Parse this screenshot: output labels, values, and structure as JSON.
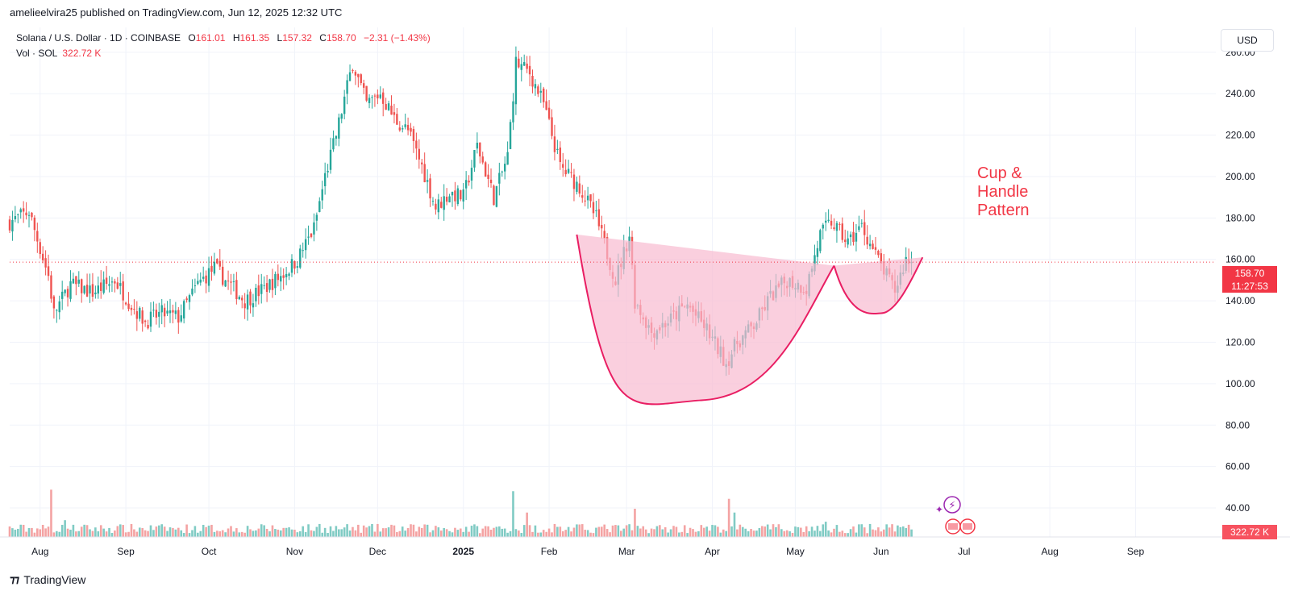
{
  "header": {
    "published": "amelieelvira25 published on TradingView.com, Jun 12, 2025 12:32 UTC"
  },
  "legend": {
    "symbol": "Solana / U.S. Dollar · 1D · COINBASE",
    "o_label": "O",
    "o_value": "161.01",
    "h_label": "H",
    "h_value": "161.35",
    "l_label": "L",
    "l_value": "157.32",
    "c_label": "C",
    "c_value": "158.70",
    "change": "−2.31 (−1.43%)",
    "vol_label": "Vol · SOL",
    "vol_value": "322.72 K"
  },
  "currency_button": "USD",
  "price_tag": {
    "price": "158.70",
    "countdown": "11:27:53"
  },
  "volume_tag": "322.72 K",
  "footer": {
    "brand": "TradingView"
  },
  "annotation": {
    "line1": "Cup &",
    "line2": "Handle",
    "line3": "Pattern"
  },
  "colors": {
    "up": "#26a69a",
    "down": "#ef5350",
    "vol_up": "#80cbc4",
    "vol_down": "#f4a3a3",
    "pattern_stroke": "#e91e63",
    "pattern_fill": "#f8bbd0",
    "annotation": "#f23645",
    "grid": "#f0f3fa"
  },
  "chart_data": {
    "type": "candlestick",
    "y_axis": {
      "ticks": [
        40,
        60,
        80,
        100,
        120,
        140,
        160,
        180,
        200,
        220,
        240,
        260
      ],
      "tick_labels": [
        "40.00",
        "60.00",
        "80.00",
        "100.00",
        "120.00",
        "140.00",
        "160.00",
        "180.00",
        "200.00",
        "220.00",
        "240.00",
        "260.00"
      ],
      "range": [
        26,
        272
      ]
    },
    "x_axis": {
      "labels": [
        "Aug",
        "Sep",
        "Oct",
        "Nov",
        "Dec",
        "2025",
        "Feb",
        "Mar",
        "Apr",
        "May",
        "Jun",
        "Jul",
        "Aug",
        "Sep"
      ],
      "label_dates": [
        "2024-08-01",
        "2024-09-01",
        "2024-10-01",
        "2024-11-01",
        "2024-12-01",
        "2025-01-01",
        "2025-02-01",
        "2025-03-01",
        "2025-04-01",
        "2025-05-01",
        "2025-06-01",
        "2025-07-01",
        "2025-08-01",
        "2025-09-01"
      ],
      "range": [
        "2024-07-21",
        "2025-09-30"
      ]
    },
    "last_price": 158.7,
    "price_series_approx": [
      [
        "2024-07-21",
        178
      ],
      [
        "2024-07-28",
        183
      ],
      [
        "2024-08-04",
        152
      ],
      [
        "2024-08-06",
        134
      ],
      [
        "2024-08-12",
        148
      ],
      [
        "2024-08-20",
        144
      ],
      [
        "2024-08-28",
        150
      ],
      [
        "2024-09-03",
        138
      ],
      [
        "2024-09-08",
        130
      ],
      [
        "2024-09-14",
        134
      ],
      [
        "2024-09-20",
        132
      ],
      [
        "2024-09-27",
        148
      ],
      [
        "2024-10-03",
        156
      ],
      [
        "2024-10-07",
        150
      ],
      [
        "2024-10-14",
        140
      ],
      [
        "2024-10-21",
        146
      ],
      [
        "2024-10-28",
        153
      ],
      [
        "2024-11-02",
        160
      ],
      [
        "2024-11-08",
        175
      ],
      [
        "2024-11-12",
        200
      ],
      [
        "2024-11-16",
        220
      ],
      [
        "2024-11-22",
        255
      ],
      [
        "2024-11-27",
        235
      ],
      [
        "2024-12-02",
        240
      ],
      [
        "2024-12-07",
        228
      ],
      [
        "2024-12-12",
        222
      ],
      [
        "2024-12-17",
        205
      ],
      [
        "2024-12-22",
        185
      ],
      [
        "2024-12-27",
        192
      ],
      [
        "2025-01-01",
        190
      ],
      [
        "2025-01-06",
        215
      ],
      [
        "2025-01-12",
        190
      ],
      [
        "2025-01-17",
        210
      ],
      [
        "2025-01-20",
        255
      ],
      [
        "2025-01-25",
        250
      ],
      [
        "2025-01-30",
        235
      ],
      [
        "2025-02-05",
        205
      ],
      [
        "2025-02-12",
        195
      ],
      [
        "2025-02-18",
        180
      ],
      [
        "2025-02-25",
        150
      ],
      [
        "2025-03-02",
        172
      ],
      [
        "2025-03-04",
        140
      ],
      [
        "2025-03-10",
        125
      ],
      [
        "2025-03-16",
        130
      ],
      [
        "2025-03-23",
        138
      ],
      [
        "2025-03-30",
        126
      ],
      [
        "2025-04-06",
        110
      ],
      [
        "2025-04-10",
        120
      ],
      [
        "2025-04-16",
        128
      ],
      [
        "2025-04-22",
        142
      ],
      [
        "2025-04-28",
        150
      ],
      [
        "2025-05-05",
        146
      ],
      [
        "2025-05-10",
        172
      ],
      [
        "2025-05-14",
        178
      ],
      [
        "2025-05-20",
        168
      ],
      [
        "2025-05-25",
        176
      ],
      [
        "2025-05-30",
        162
      ],
      [
        "2025-06-03",
        152
      ],
      [
        "2025-06-06",
        145
      ],
      [
        "2025-06-10",
        160
      ],
      [
        "2025-06-12",
        158.7
      ]
    ],
    "volume_series_approx": [
      [
        "2024-08-05",
        90
      ],
      [
        "2024-08-10",
        50
      ],
      [
        "2024-09-20",
        40
      ],
      [
        "2024-11-10",
        45
      ],
      [
        "2024-12-01",
        45
      ],
      [
        "2025-01-19",
        88
      ],
      [
        "2025-01-24",
        60
      ],
      [
        "2025-02-03",
        45
      ],
      [
        "2025-03-04",
        65
      ],
      [
        "2025-04-07",
        78
      ],
      [
        "2025-04-09",
        60
      ],
      [
        "2025-05-12",
        48
      ],
      [
        "2025-05-28",
        45
      ]
    ],
    "pattern": {
      "name": "Cup & Handle Pattern",
      "cup_left": [
        "2025-02-11",
        172
      ],
      "cup_bottom": [
        "2025-03-28",
        92
      ],
      "cup_right": [
        "2025-05-15",
        157
      ],
      "handle_bottom": [
        "2025-06-01",
        134
      ],
      "handle_right": [
        "2025-06-16",
        161
      ],
      "neckline": [
        [
          "2025-02-11",
          172
        ],
        [
          "2025-06-16",
          161
        ]
      ]
    }
  }
}
